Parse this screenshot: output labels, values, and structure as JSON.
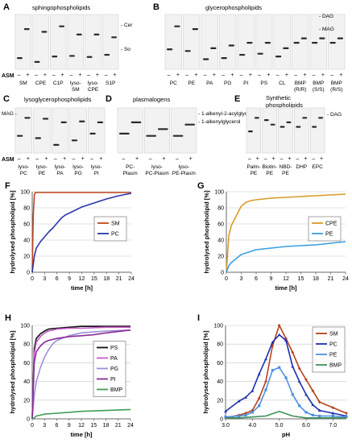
{
  "figure": {
    "panels_tlc": [
      {
        "letter": "A",
        "title": "sphingophospholipids",
        "right_labels": [
          "Cer",
          "So"
        ],
        "lanes": [
          "SM",
          "CPE",
          "C1P",
          "lyso-SM",
          "lyso-CPE",
          "S1P"
        ],
        "row_label": "ASM",
        "minus": "–",
        "plus": "+"
      },
      {
        "letter": "B",
        "title": "glycerophospholipids",
        "right_labels": [
          "DAG",
          "MAG"
        ],
        "lanes": [
          "PC",
          "PE",
          "PA",
          "PG",
          "PI",
          "PS",
          "CL",
          "BMP (R/R)",
          "BMP (S/S)",
          "BMP (R/S)"
        ],
        "minus": "–",
        "plus": "+"
      },
      {
        "letter": "C",
        "title": "lysoglycerophospholipids",
        "left_label": "MAG",
        "row_label": "ASM",
        "lanes": [
          "lyso-PC",
          "lyso-PE",
          "lyso-PA",
          "lyso-PG",
          "lyso-PI"
        ],
        "minus": "–",
        "plus": "+"
      },
      {
        "letter": "D",
        "title": "plasmalogens",
        "right_labels": [
          "1-alkenyl-2-acylglycerol",
          "1-alkenylglycerol"
        ],
        "lanes": [
          "PC-Plasm",
          "lyso-PC-Plasm",
          "lyso-PE-Plasm"
        ],
        "minus": "–",
        "plus": "+"
      },
      {
        "letter": "E",
        "title": "Synthetic phospholipids",
        "right_labels": [
          "DAG"
        ],
        "lanes": [
          "Palm-PE",
          "Biotin-PE",
          "NBD-PE",
          "DHP",
          "EPC"
        ],
        "minus": "–",
        "plus": "+"
      }
    ],
    "axis_text": {
      "ylabel": "hydrolysed phospholipid [%]",
      "xlabel_time": "time [h]",
      "xlabel_ph": "pH"
    }
  },
  "chart_data": [
    {
      "panel": "F",
      "type": "line",
      "xlabel": "time [h]",
      "ylabel": "hydrolysed phospholipid [%]",
      "xlim": [
        0,
        24
      ],
      "ylim": [
        0,
        100
      ],
      "xticks": [
        0,
        3,
        6,
        9,
        12,
        15,
        18,
        21,
        24
      ],
      "yticks": [
        0,
        20,
        40,
        60,
        80,
        100
      ],
      "legend_position": "center-right",
      "series": [
        {
          "name": "SM",
          "color": "#c0461c",
          "x": [
            0,
            0.25,
            0.5,
            0.75,
            1,
            2,
            6,
            12,
            24
          ],
          "y": [
            0,
            70,
            96,
            99,
            99,
            99,
            99,
            99,
            99
          ]
        },
        {
          "name": "PC",
          "color": "#2b35a8",
          "x": [
            0,
            0.5,
            1,
            2,
            3,
            4,
            5,
            6,
            7,
            8,
            10,
            12,
            15,
            18,
            21,
            24
          ],
          "y": [
            0,
            20,
            30,
            38,
            44,
            50,
            55,
            61,
            67,
            71,
            76,
            81,
            86,
            91,
            95,
            98
          ]
        }
      ]
    },
    {
      "panel": "G",
      "type": "line",
      "xlabel": "time [h]",
      "ylabel": "hydrolysed phospholipid [%]",
      "xlim": [
        0,
        24
      ],
      "ylim": [
        0,
        100
      ],
      "xticks": [
        0,
        3,
        6,
        9,
        12,
        15,
        18,
        21,
        24
      ],
      "yticks": [
        0,
        20,
        40,
        60,
        80,
        100
      ],
      "legend_position": "center-right",
      "series": [
        {
          "name": "CPE",
          "color": "#d99a28",
          "x": [
            0,
            0.5,
            1,
            2,
            3,
            4,
            5,
            6,
            9,
            12,
            15,
            18,
            21,
            24
          ],
          "y": [
            0,
            46,
            58,
            70,
            82,
            87,
            89,
            90,
            92,
            93,
            94,
            95,
            96,
            97
          ]
        },
        {
          "name": "PE",
          "color": "#3a9fe0",
          "x": [
            0,
            0.5,
            1,
            2,
            3,
            4,
            5,
            6,
            9,
            12,
            15,
            18,
            21,
            24
          ],
          "y": [
            0,
            8,
            12,
            17,
            22,
            24,
            26,
            28,
            30,
            32,
            33,
            34,
            36,
            38
          ]
        }
      ]
    },
    {
      "panel": "H",
      "type": "line",
      "xlabel": "time [h]",
      "ylabel": "hydrolysed phospholipid [%]",
      "xlim": [
        0,
        24
      ],
      "ylim": [
        0,
        100
      ],
      "xticks": [
        0,
        3,
        6,
        9,
        12,
        15,
        18,
        21,
        24
      ],
      "yticks": [
        0,
        20,
        40,
        60,
        80,
        100
      ],
      "legend_position": "center-right",
      "series": [
        {
          "name": "PS",
          "color": "#111111",
          "x": [
            0,
            0.5,
            1,
            2,
            3,
            4,
            6,
            9,
            12,
            18,
            24
          ],
          "y": [
            0,
            75,
            86,
            91,
            94,
            96,
            97,
            98,
            99,
            99,
            99
          ]
        },
        {
          "name": "PA",
          "color": "#c95ac9",
          "x": [
            0,
            0.5,
            1,
            2,
            3,
            4,
            6,
            9,
            12,
            18,
            24
          ],
          "y": [
            0,
            70,
            82,
            88,
            92,
            94,
            96,
            97,
            97,
            98,
            98
          ]
        },
        {
          "name": "PG",
          "color": "#9a8fd8",
          "x": [
            0,
            0.5,
            1,
            2,
            3,
            4,
            5,
            6,
            9,
            12,
            15,
            18,
            24
          ],
          "y": [
            0,
            25,
            40,
            55,
            66,
            74,
            80,
            84,
            89,
            92,
            93,
            94,
            95
          ]
        },
        {
          "name": "PI",
          "color": "#8a2a9a",
          "x": [
            0,
            0.5,
            1,
            2,
            3,
            4,
            6,
            9,
            12,
            15,
            18,
            24
          ],
          "y": [
            0,
            60,
            72,
            78,
            82,
            84,
            86,
            88,
            89,
            90,
            92,
            95
          ]
        },
        {
          "name": "BMP",
          "color": "#3f9e56",
          "x": [
            0,
            0.5,
            1,
            2,
            3,
            6,
            9,
            12,
            18,
            24
          ],
          "y": [
            0,
            1,
            3,
            4,
            5,
            6,
            7,
            8,
            9,
            10
          ]
        }
      ]
    },
    {
      "panel": "I",
      "type": "line",
      "xlabel": "pH",
      "ylabel": "hydrolysed phospholipid [%]",
      "xlim": [
        3.0,
        7.5
      ],
      "ylim": [
        0,
        100
      ],
      "xticks": [
        3.0,
        4.0,
        5.0,
        6.0,
        7.0
      ],
      "xtick_labels": [
        "3.0",
        "4.0",
        "5.0",
        "6.0",
        "7.0"
      ],
      "yticks": [
        0,
        20,
        40,
        60,
        80,
        100
      ],
      "legend_position": "top-right",
      "series": [
        {
          "name": "SM",
          "color": "#b5421b",
          "marker": "diamond",
          "x": [
            3.0,
            3.5,
            3.75,
            4.0,
            4.25,
            4.5,
            4.75,
            5.0,
            5.25,
            5.5,
            5.75,
            6.0,
            6.25,
            6.5,
            7.0,
            7.5
          ],
          "y": [
            1,
            4,
            6,
            9,
            22,
            40,
            78,
            100,
            86,
            71,
            54,
            42,
            30,
            18,
            12,
            6
          ]
        },
        {
          "name": "PC",
          "color": "#1d2fb0",
          "marker": "triangle",
          "x": [
            3.0,
            3.5,
            3.75,
            4.0,
            4.25,
            4.5,
            4.75,
            5.0,
            5.25,
            5.5,
            5.75,
            6.0,
            6.25,
            6.5,
            7.0,
            7.5
          ],
          "y": [
            8,
            19,
            23,
            30,
            48,
            64,
            82,
            90,
            84,
            56,
            40,
            26,
            15,
            9,
            6,
            3
          ]
        },
        {
          "name": "PE",
          "color": "#4d8fe0",
          "marker": "square",
          "x": [
            3.0,
            3.5,
            3.75,
            4.0,
            4.25,
            4.5,
            4.75,
            5.0,
            5.25,
            5.5,
            5.75,
            6.0,
            6.25,
            6.5,
            7.0,
            7.5
          ],
          "y": [
            2,
            3,
            4,
            7,
            14,
            31,
            52,
            55,
            44,
            26,
            14,
            7,
            4,
            3,
            3,
            2
          ]
        },
        {
          "name": "BMP",
          "color": "#3f8f5a",
          "marker": "none",
          "x": [
            3.0,
            3.5,
            4.0,
            4.5,
            5.0,
            5.5,
            6.0,
            6.5,
            7.0,
            7.5
          ],
          "y": [
            1,
            1,
            2,
            3,
            8,
            3,
            1,
            1,
            1,
            1
          ]
        }
      ]
    }
  ]
}
